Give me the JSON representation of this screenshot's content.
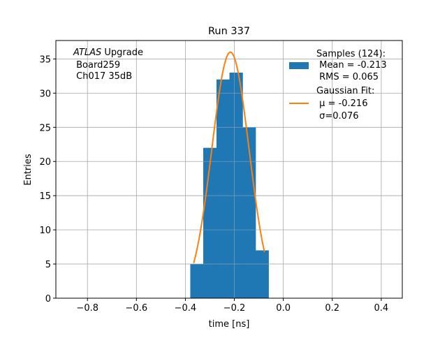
{
  "chart_data": {
    "type": "bar",
    "title": "Run 337",
    "xlabel": "time [ns]",
    "ylabel": "Entries",
    "xlim": [
      -0.929,
      0.486
    ],
    "ylim": [
      0,
      37.7
    ],
    "grid": true,
    "xticks": [
      -0.8,
      -0.6,
      -0.4,
      -0.2,
      0.0,
      0.2,
      0.4
    ],
    "xtick_labels": [
      "−0.8",
      "−0.6",
      "−0.4",
      "−0.2",
      "0.0",
      "0.2",
      "0.4"
    ],
    "yticks": [
      0,
      5,
      10,
      15,
      20,
      25,
      30,
      35
    ],
    "ytick_labels": [
      "0",
      "5",
      "10",
      "15",
      "20",
      "25",
      "30",
      "35"
    ],
    "histogram": {
      "bin_edges": [
        -0.38,
        -0.327,
        -0.273,
        -0.22,
        -0.166,
        -0.113,
        -0.06
      ],
      "counts": [
        5,
        22,
        32,
        33,
        25,
        7
      ],
      "color": "#1f77b4"
    },
    "fit": {
      "type": "gaussian",
      "mu": -0.216,
      "sigma": 0.076,
      "amplitude": 36.0,
      "x_range": [
        -0.366,
        -0.077
      ],
      "color": "#ff7f0e"
    },
    "annotation": {
      "line1_italic": "ATLAS",
      "line1_rest": " Upgrade",
      "line2": " Board259",
      "line3": " Ch017 35dB"
    },
    "legend": {
      "placement": "top-right",
      "entries": [
        {
          "lines": [
            "Samples (124):",
            " Mean = -0.213",
            " RMS = 0.065"
          ]
        },
        {
          "lines": [
            "Gaussian Fit:",
            " μ = -0.216",
            " σ=0.076"
          ]
        }
      ]
    }
  }
}
